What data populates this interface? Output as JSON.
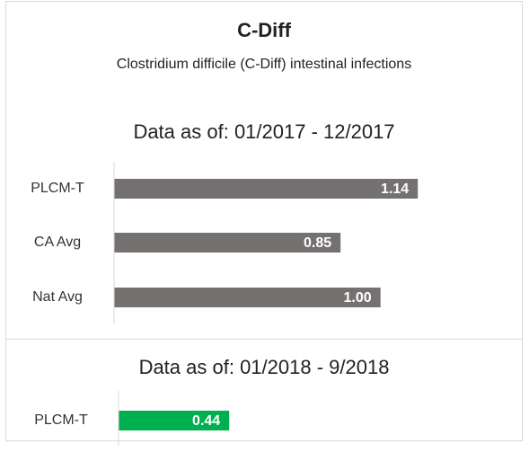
{
  "header": {
    "title": "C-Diff",
    "subtitle": "Clostridium difficile (C-Diff) intestinal infections"
  },
  "chart_data": [
    {
      "type": "bar",
      "orientation": "horizontal",
      "title": "Data as of: 01/2017 - 12/2017",
      "categories": [
        "PLCM-T",
        "CA Avg",
        "Nat Avg"
      ],
      "values": [
        1.14,
        0.85,
        1.0
      ],
      "value_labels": [
        "1.14",
        "0.85",
        "1.00"
      ],
      "color": "#767171",
      "xlim": [
        0,
        1.2
      ]
    },
    {
      "type": "bar",
      "orientation": "horizontal",
      "title": "Data as of: 01/2018 - 9/2018",
      "categories": [
        "PLCM-T"
      ],
      "values": [
        0.44
      ],
      "value_labels": [
        "0.44"
      ],
      "color": "#00b050",
      "xlim": [
        0,
        1.2
      ]
    }
  ]
}
